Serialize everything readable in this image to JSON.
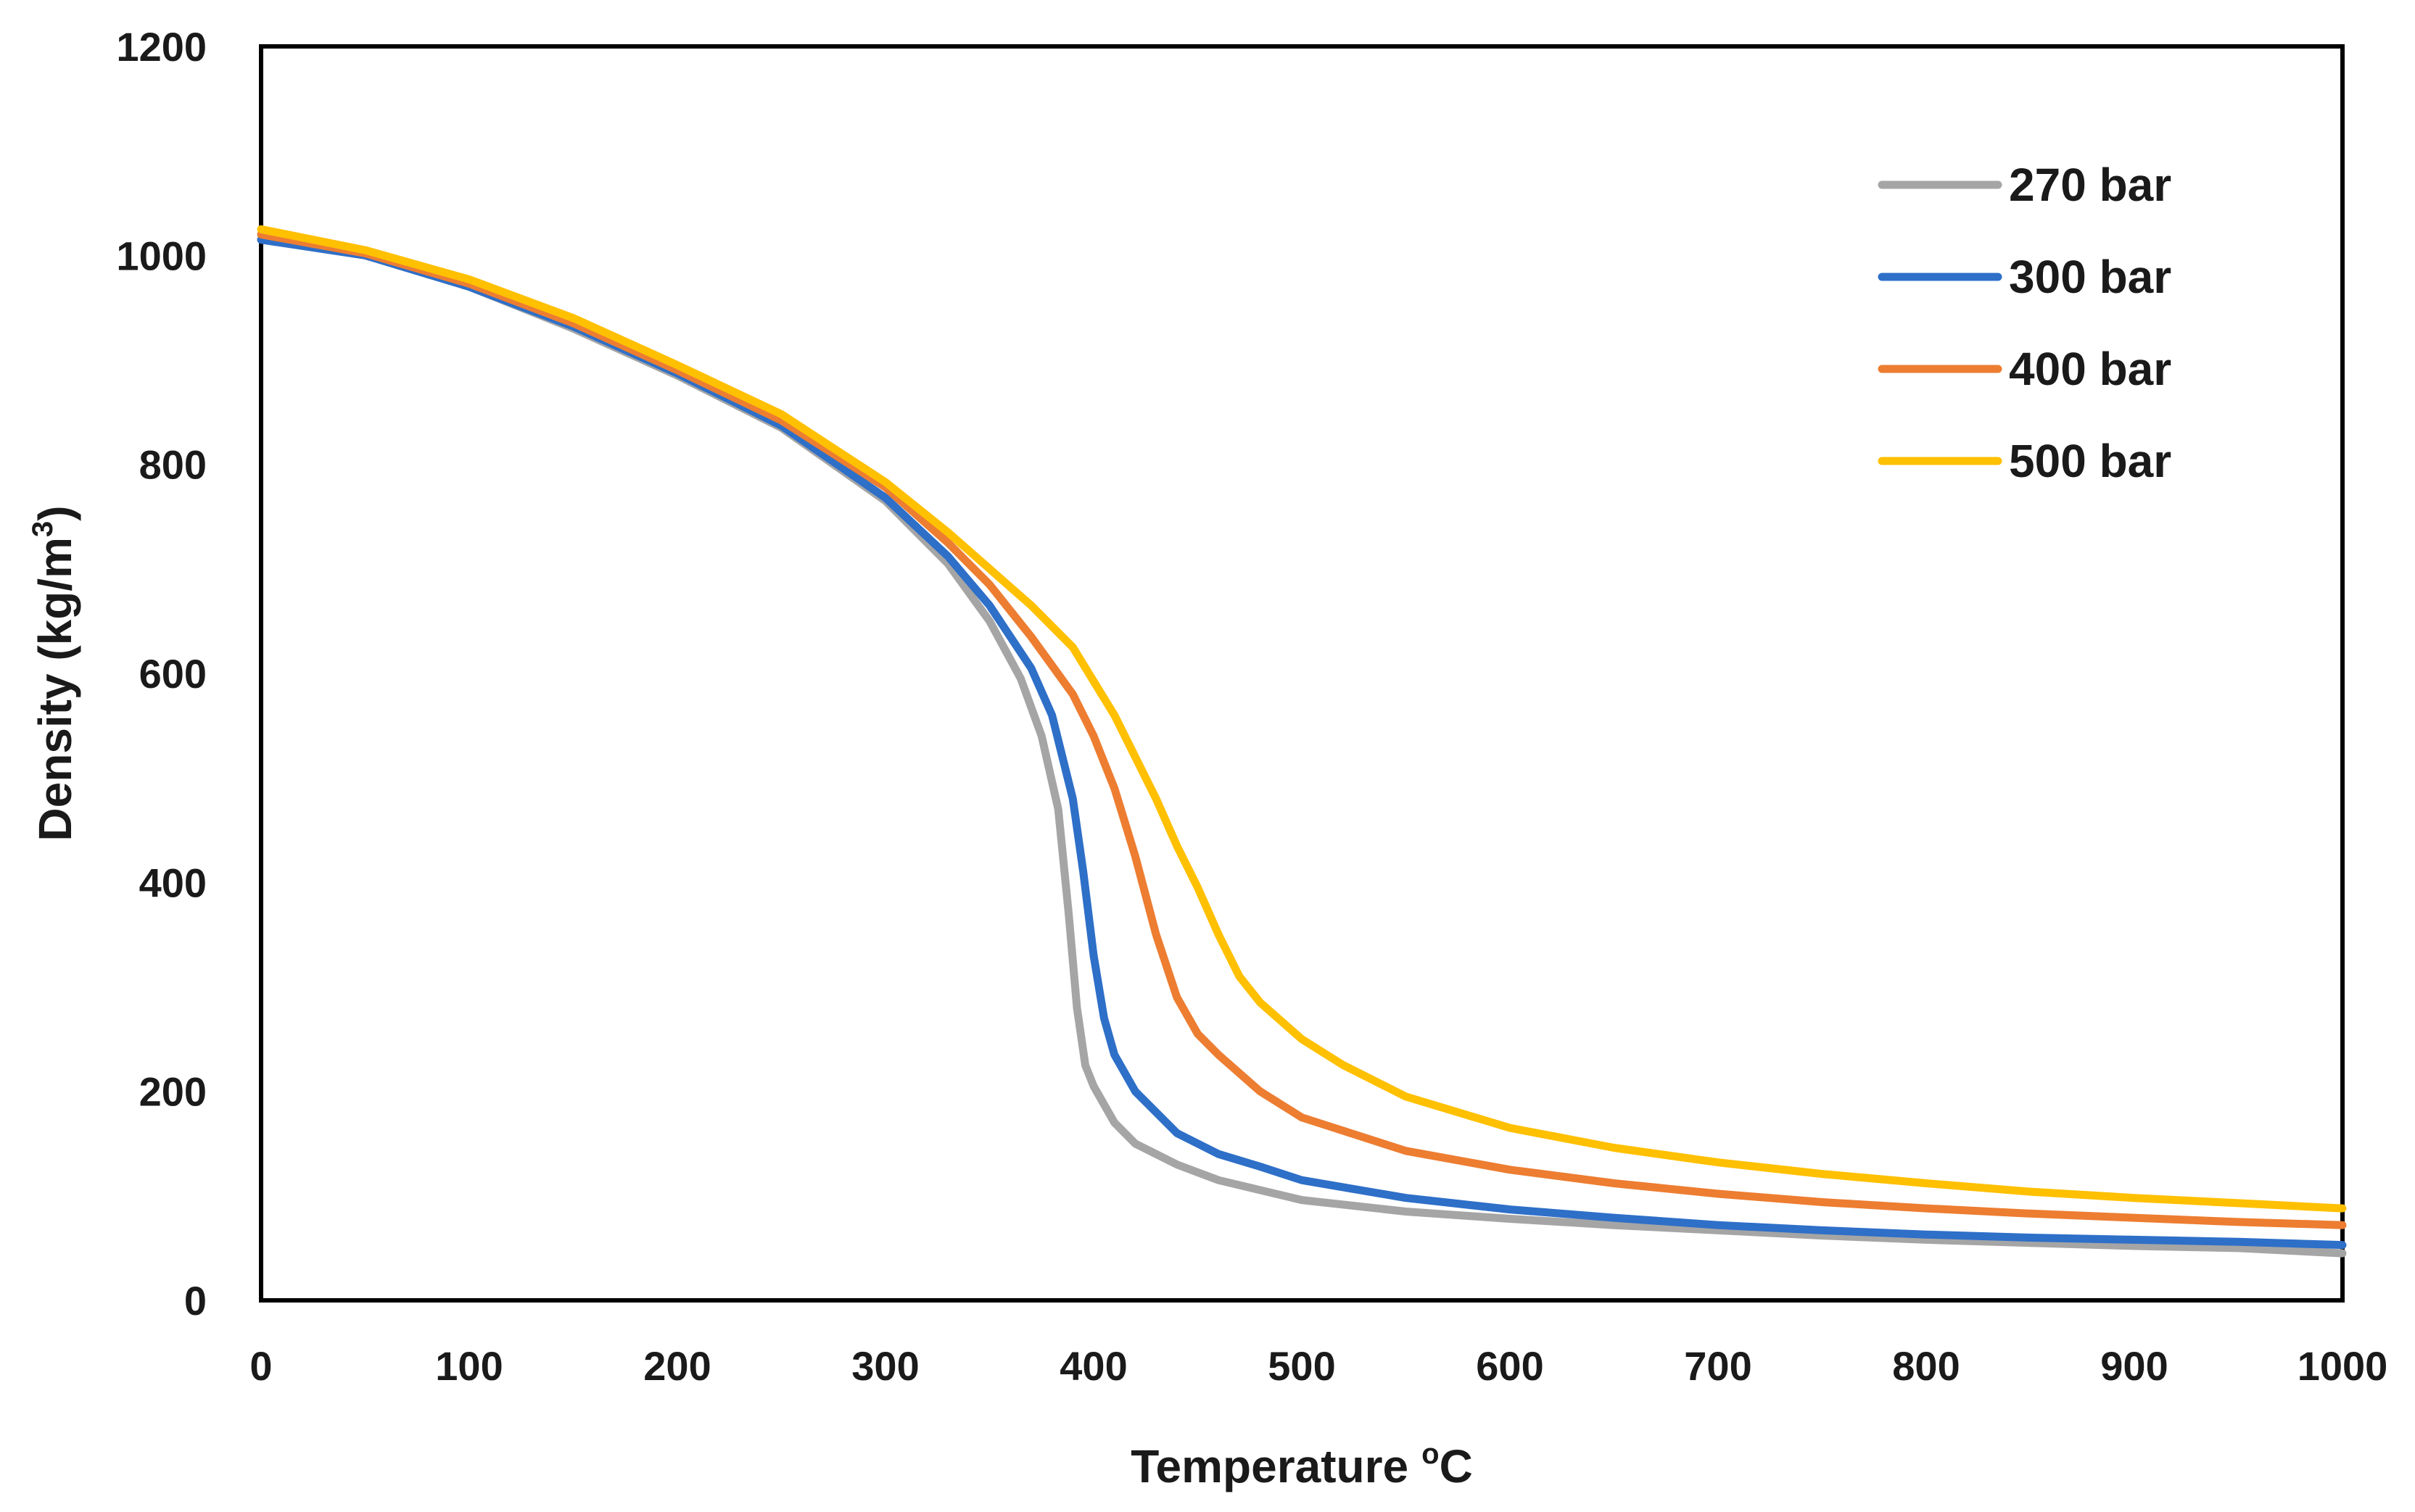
{
  "chart_data": {
    "type": "line",
    "title": "",
    "xlabel": "Temperature",
    "xlabel_unit_sup": "o",
    "xlabel_unit": "C",
    "ylabel": "Density (kg/m",
    "ylabel_sup": "3",
    "ylabel_close": ")",
    "xlim": [
      0,
      1000
    ],
    "ylim": [
      0,
      1200
    ],
    "x_ticks": [
      0,
      100,
      200,
      300,
      400,
      500,
      600,
      700,
      800,
      900,
      1000
    ],
    "y_ticks": [
      0,
      200,
      400,
      600,
      800,
      1000,
      1200
    ],
    "x_tick_labels": [
      "0",
      "100",
      "200",
      "300",
      "400",
      "500",
      "600",
      "700",
      "800",
      "900",
      "1000"
    ],
    "y_tick_labels": [
      "0",
      "200",
      "400",
      "600",
      "800",
      "1000",
      "1200"
    ],
    "grid": false,
    "legend_position": "top-right",
    "series": [
      {
        "name": "270 bar",
        "color": "#a5a5a5",
        "x": [
          0,
          50,
          100,
          150,
          200,
          250,
          300,
          330,
          350,
          365,
          375,
          383,
          388,
          392,
          396,
          400,
          410,
          420,
          440,
          460,
          500,
          550,
          600,
          650,
          700,
          750,
          800,
          850,
          900,
          950,
          1000
        ],
        "y": [
          1015,
          1000,
          970,
          930,
          885,
          835,
          765,
          705,
          650,
          595,
          540,
          470,
          370,
          280,
          225,
          205,
          170,
          150,
          130,
          115,
          96,
          85,
          78,
          72,
          67,
          62,
          58,
          55,
          52,
          50,
          45
        ]
      },
      {
        "name": "300 bar",
        "color": "#2e6fc8",
        "x": [
          0,
          50,
          100,
          150,
          200,
          250,
          300,
          330,
          350,
          370,
          380,
          390,
          395,
          400,
          405,
          410,
          420,
          440,
          460,
          480,
          500,
          550,
          600,
          650,
          700,
          750,
          800,
          850,
          900,
          950,
          1000
        ],
        "y": [
          1015,
          1000,
          970,
          932,
          887,
          837,
          768,
          712,
          665,
          605,
          560,
          480,
          410,
          330,
          270,
          235,
          200,
          160,
          140,
          128,
          115,
          98,
          87,
          79,
          72,
          67,
          63,
          60,
          58,
          56,
          53
        ]
      },
      {
        "name": "400 bar",
        "color": "#ed7d31",
        "x": [
          0,
          50,
          100,
          150,
          200,
          250,
          300,
          330,
          350,
          370,
          390,
          400,
          410,
          420,
          430,
          440,
          450,
          460,
          480,
          500,
          550,
          600,
          650,
          700,
          750,
          800,
          850,
          900,
          950,
          1000
        ],
        "y": [
          1020,
          1002,
          973,
          935,
          890,
          842,
          778,
          725,
          685,
          635,
          580,
          540,
          490,
          425,
          350,
          290,
          255,
          235,
          200,
          175,
          143,
          125,
          112,
          102,
          94,
          88,
          83,
          79,
          75,
          72
        ]
      },
      {
        "name": "500 bar",
        "color": "#ffc000",
        "x": [
          0,
          50,
          100,
          150,
          200,
          250,
          300,
          330,
          350,
          370,
          390,
          410,
          430,
          440,
          450,
          460,
          470,
          480,
          500,
          520,
          550,
          600,
          650,
          700,
          750,
          800,
          850,
          900,
          950,
          1000
        ],
        "y": [
          1025,
          1005,
          977,
          940,
          895,
          848,
          783,
          735,
          700,
          665,
          625,
          560,
          480,
          435,
          395,
          350,
          310,
          285,
          250,
          225,
          195,
          165,
          146,
          132,
          121,
          112,
          104,
          98,
          93,
          88
        ]
      }
    ]
  }
}
